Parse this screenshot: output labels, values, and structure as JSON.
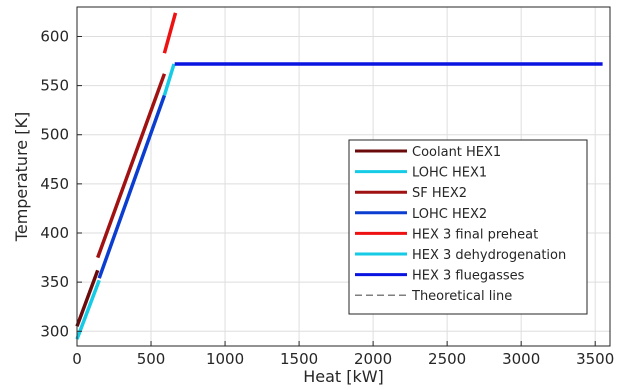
{
  "chart_data": {
    "type": "line",
    "title": "",
    "xlabel": "Heat [kW]",
    "ylabel": "Temperature [K]",
    "xlim": [
      0,
      3600
    ],
    "ylim": [
      285,
      630
    ],
    "xticks": [
      0,
      500,
      1000,
      1500,
      2000,
      2500,
      3000,
      3500
    ],
    "yticks": [
      300,
      350,
      400,
      450,
      500,
      550,
      600
    ],
    "grid": true,
    "legend_position": "bottom-right",
    "series": [
      {
        "name": "Coolant HEX1",
        "color": "#6b0a0a",
        "dash": "solid",
        "x": [
          0,
          140
        ],
        "y": [
          305,
          362
        ]
      },
      {
        "name": "LOHC HEX1",
        "color": "#15cbe6",
        "dash": "solid",
        "x": [
          0,
          150
        ],
        "y": [
          292,
          352
        ]
      },
      {
        "name": "SF HEX2",
        "color": "#a01212",
        "dash": "solid",
        "x": [
          140,
          590
        ],
        "y": [
          375,
          562
        ]
      },
      {
        "name": "LOHC HEX2",
        "color": "#0a3dd0",
        "dash": "solid",
        "x": [
          150,
          590
        ],
        "y": [
          354,
          540
        ]
      },
      {
        "name": "HEX 3 final preheat",
        "color": "#ee1111",
        "dash": "solid",
        "x": [
          590,
          665
        ],
        "y": [
          583,
          624
        ]
      },
      {
        "name": "HEX 3 dehydrogenation",
        "color": "#15cbe6",
        "dash": "solid",
        "x": [
          590,
          655
        ],
        "y": [
          540,
          572
        ]
      },
      {
        "name": "HEX 3 fluegasses",
        "color": "#0a14e0",
        "dash": "solid",
        "x": [
          660,
          3550
        ],
        "y": [
          572,
          572
        ]
      },
      {
        "name": "Theoretical line",
        "color": "#555555",
        "dash": "dashed",
        "x": [],
        "y": []
      }
    ]
  }
}
